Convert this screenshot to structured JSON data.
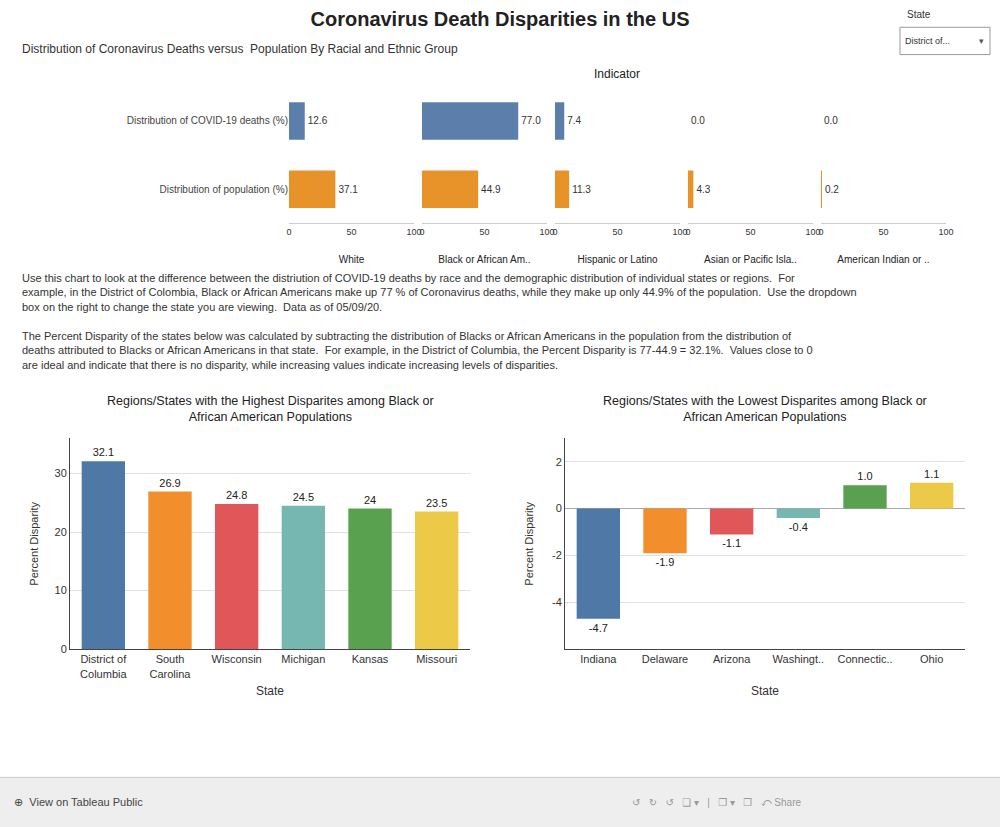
{
  "title": "Coronavirus Death Disparities in the US",
  "subtitle": "Distribution of Coronavirus Deaths versus  Population By Racial and Ethnic Group",
  "annotations": [
    "State",
    "District of...",
    "▾",
    "Use this chart to look at the difference between the distriution of COVID-19 deaths by race and the demographic distribution of individual states or regions.  For example, in the District of Colombia, Black or African Americans make up 77 % of Coronavirus deaths, while they make up only 44.9% of the population.  Use the dropdown box on the right to change the state you are viewing.  Data as of 05/09/20.",
    "The Percent Disparity of the states below was calculated by subtracting the distribution of Blacks or African Americans in the population from the distribution of deaths attributed to Blacks or African Americans in that state.  For example, in the District of Columbia, the Percent Disparity is 77-44.9 = 32.1%.  Values close to 0 are ideal and indicate that there is no disparity, while increasing values indicate increasing levels of disparities.",
    "⊕  View on Tableau Public",
    "↺   ↻   ↺   ❑ ▾   |   ❐ ▾   ❒   ⤺ Share"
  ],
  "chart_data": [
    {
      "type": "bar",
      "orientation": "horizontal",
      "title": "Indicator",
      "categories": [
        "Distribution of COVID-19 deaths (%)",
        "Distribution of population (%)"
      ],
      "colors": [
        "#5b7faa",
        "#e8922a"
      ],
      "series": [
        {
          "name": "White",
          "values": [
            12.6,
            37.1
          ],
          "value_labels": [
            "12.6",
            "37.1"
          ]
        },
        {
          "name": "Black or African Am..",
          "values": [
            77.0,
            44.9
          ],
          "value_labels": [
            "77.0",
            "44.9"
          ]
        },
        {
          "name": "Hispanic or Latino",
          "values": [
            7.4,
            11.3
          ],
          "value_labels": [
            "7.4",
            "11.3"
          ]
        },
        {
          "name": "Asian or Pacific Isla..",
          "values": [
            0.0,
            4.3
          ],
          "value_labels": [
            "0.0",
            "4.3"
          ]
        },
        {
          "name": "American Indian or ..",
          "values": [
            0.0,
            0.2
          ],
          "value_labels": [
            "0.0",
            "0.2"
          ]
        }
      ],
      "xlim": [
        0,
        100
      ],
      "xticks": [
        0,
        50,
        100
      ],
      "grid": false,
      "data_labels": true
    },
    {
      "type": "bar",
      "title": "Regions/States with the Highest Disparites among Black or\nAfrican American Populations",
      "x_label": "State",
      "y_label": "Percent Disparity",
      "categories": [
        "District of\nColumbia",
        "South\nCarolina",
        "Wisconsin",
        "Michigan",
        "Kansas",
        "Missouri"
      ],
      "values": [
        32.1,
        26.9,
        24.8,
        24.5,
        24,
        23.5
      ],
      "colors": [
        "#4e79a7",
        "#f28e2b",
        "#e15759",
        "#76b7b2",
        "#59a14f",
        "#edc948"
      ],
      "ylim": [
        0,
        36
      ],
      "yticks": [
        0,
        10,
        20,
        30
      ],
      "grid": true,
      "data_labels": true
    },
    {
      "type": "bar",
      "title": "Regions/States with the Lowest Disparites among Black or\nAfrican American Populations",
      "x_label": "State",
      "y_label": "Percent Disparity",
      "categories": [
        "Indiana",
        "Delaware",
        "Arizona",
        "Washingt..",
        "Connectic..",
        "Ohio"
      ],
      "values": [
        -4.7,
        -1.9,
        -1.1,
        -0.4,
        1.0,
        1.1
      ],
      "value_labels": [
        "-4.7",
        "-1.9",
        "-1.1",
        "-0.4",
        "1.0",
        "1.1"
      ],
      "colors": [
        "#4e79a7",
        "#f28e2b",
        "#e15759",
        "#76b7b2",
        "#59a14f",
        "#edc948"
      ],
      "ylim": [
        -6,
        3
      ],
      "yticks": [
        -4,
        -2,
        0,
        2
      ],
      "grid": true,
      "data_labels": true
    }
  ]
}
